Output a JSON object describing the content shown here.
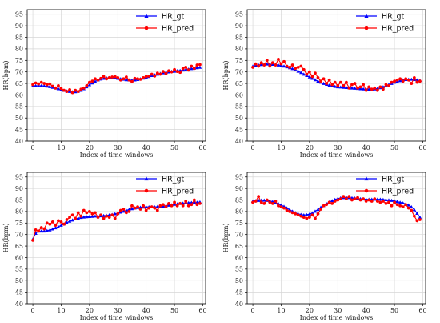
{
  "chart_data": [
    {
      "type": "line",
      "xlabel": "Index of time windows",
      "ylabel": "HR(bpm)",
      "xlim": [
        -2,
        61
      ],
      "ylim": [
        40,
        97
      ],
      "xticks": [
        0,
        10,
        20,
        30,
        40,
        50,
        60
      ],
      "yticks": [
        40,
        45,
        50,
        55,
        60,
        65,
        70,
        75,
        80,
        85,
        90,
        95
      ],
      "grid": true,
      "legend_position": "top-right",
      "series": [
        {
          "name": "HR_gt",
          "color": "#0000ff",
          "marker": "triangle",
          "y": [
            64.0,
            64.0,
            64.0,
            64.0,
            63.9,
            63.8,
            63.6,
            63.3,
            63.0,
            62.7,
            62.3,
            62.0,
            61.7,
            61.5,
            61.4,
            61.4,
            61.6,
            62.0,
            62.7,
            63.5,
            64.4,
            65.2,
            65.9,
            66.5,
            66.9,
            67.2,
            67.4,
            67.5,
            67.5,
            67.4,
            67.2,
            67.0,
            66.8,
            66.6,
            66.5,
            66.4,
            66.5,
            66.7,
            67.0,
            67.3,
            67.7,
            68.0,
            68.4,
            68.7,
            69.0,
            69.3,
            69.6,
            69.8,
            70.0,
            70.2,
            70.3,
            70.5,
            70.6,
            70.8,
            71.0,
            71.2,
            71.4,
            71.6,
            71.8,
            72.0
          ]
        },
        {
          "name": "HR_pred",
          "color": "#ff0000",
          "marker": "circle",
          "y": [
            64.5,
            65.2,
            64.8,
            65.5,
            65.0,
            64.5,
            64.8,
            63.8,
            63.0,
            64.0,
            62.8,
            62.0,
            61.5,
            62.3,
            61.0,
            62.0,
            61.5,
            62.5,
            63.0,
            64.0,
            65.5,
            66.0,
            67.0,
            66.5,
            67.2,
            68.0,
            67.0,
            67.5,
            67.8,
            68.0,
            67.5,
            66.5,
            67.0,
            67.8,
            66.5,
            65.8,
            67.2,
            67.0,
            66.8,
            67.5,
            68.0,
            68.2,
            69.0,
            68.2,
            69.5,
            69.0,
            70.2,
            69.2,
            70.5,
            70.0,
            71.0,
            70.2,
            69.8,
            71.5,
            72.0,
            70.8,
            72.5,
            71.5,
            73.0,
            73.2
          ]
        }
      ]
    },
    {
      "type": "line",
      "xlabel": "Index of time windows",
      "ylabel": "HR(bpm)",
      "xlim": [
        -2,
        61
      ],
      "ylim": [
        40,
        97
      ],
      "xticks": [
        0,
        10,
        20,
        30,
        40,
        50,
        60
      ],
      "yticks": [
        40,
        45,
        50,
        55,
        60,
        65,
        70,
        75,
        80,
        85,
        90,
        95
      ],
      "grid": true,
      "legend_position": "top-right",
      "series": [
        {
          "name": "HR_gt",
          "color": "#0000ff",
          "marker": "triangle",
          "y": [
            72.5,
            72.8,
            73.0,
            73.2,
            73.3,
            73.4,
            73.4,
            73.3,
            73.2,
            73.0,
            72.8,
            72.5,
            72.2,
            71.8,
            71.4,
            70.9,
            70.3,
            69.7,
            69.0,
            68.4,
            67.8,
            67.2,
            66.6,
            66.0,
            65.5,
            65.0,
            64.6,
            64.2,
            63.9,
            63.7,
            63.5,
            63.4,
            63.3,
            63.2,
            63.1,
            63.0,
            62.9,
            62.8,
            62.7,
            62.6,
            62.5,
            62.5,
            62.5,
            62.6,
            62.8,
            63.1,
            63.5,
            64.0,
            64.5,
            65.0,
            65.5,
            65.9,
            66.2,
            66.5,
            66.7,
            66.8,
            66.8,
            66.7,
            66.5,
            66.3
          ]
        },
        {
          "name": "HR_pred",
          "color": "#ff0000",
          "marker": "circle",
          "y": [
            72.0,
            73.5,
            72.5,
            74.0,
            73.0,
            75.0,
            72.5,
            74.0,
            73.0,
            75.5,
            73.5,
            74.5,
            72.5,
            72.0,
            73.0,
            71.5,
            72.0,
            72.5,
            71.0,
            69.0,
            70.0,
            68.0,
            69.5,
            67.5,
            66.0,
            67.0,
            65.0,
            66.5,
            64.5,
            65.5,
            64.0,
            65.5,
            64.0,
            65.5,
            63.0,
            64.5,
            65.0,
            63.0,
            63.5,
            64.5,
            62.0,
            63.5,
            62.5,
            63.0,
            62.0,
            63.5,
            62.5,
            64.5,
            64.0,
            65.5,
            66.0,
            66.5,
            67.0,
            66.0,
            67.0,
            66.5,
            65.0,
            67.5,
            65.5,
            66.0
          ]
        }
      ]
    },
    {
      "type": "line",
      "xlabel": "Index of time windows",
      "ylabel": "HR(bpm)",
      "xlim": [
        -2,
        61
      ],
      "ylim": [
        40,
        97
      ],
      "xticks": [
        0,
        10,
        20,
        30,
        40,
        50,
        60
      ],
      "yticks": [
        40,
        45,
        50,
        55,
        60,
        65,
        70,
        75,
        80,
        85,
        90,
        95
      ],
      "grid": true,
      "legend_position": "top-right",
      "series": [
        {
          "name": "HR_gt",
          "color": "#0000ff",
          "marker": "triangle",
          "y": [
            68.0,
            70.5,
            71.5,
            71.5,
            71.5,
            71.7,
            72.0,
            72.4,
            72.9,
            73.4,
            74.0,
            74.6,
            75.2,
            75.8,
            76.3,
            76.8,
            77.1,
            77.4,
            77.6,
            77.7,
            77.8,
            77.9,
            78.0,
            78.0,
            78.1,
            78.2,
            78.3,
            78.5,
            78.7,
            79.0,
            79.3,
            79.7,
            80.1,
            80.5,
            80.9,
            81.2,
            81.5,
            81.7,
            81.8,
            81.9,
            82.0,
            82.0,
            82.0,
            82.0,
            82.1,
            82.2,
            82.3,
            82.5,
            82.7,
            82.9,
            83.1,
            83.3,
            83.5,
            83.6,
            83.7,
            83.8,
            83.9,
            84.0,
            84.0,
            84.1
          ]
        },
        {
          "name": "HR_pred",
          "color": "#ff0000",
          "marker": "circle",
          "y": [
            67.5,
            72.0,
            71.5,
            73.0,
            72.5,
            75.0,
            74.5,
            75.5,
            74.0,
            76.0,
            75.5,
            74.5,
            76.5,
            77.5,
            78.5,
            77.0,
            79.5,
            78.0,
            80.5,
            79.5,
            80.0,
            79.0,
            79.5,
            77.5,
            78.5,
            77.0,
            78.0,
            77.5,
            78.5,
            77.0,
            79.0,
            80.5,
            81.0,
            79.5,
            80.0,
            82.5,
            81.5,
            82.0,
            81.0,
            82.5,
            80.5,
            81.5,
            82.0,
            81.5,
            80.5,
            82.5,
            83.0,
            82.0,
            83.5,
            82.5,
            84.0,
            82.5,
            83.5,
            82.5,
            84.5,
            82.5,
            83.0,
            85.0,
            83.0,
            83.5
          ]
        }
      ]
    },
    {
      "type": "line",
      "xlabel": "Index of time windows",
      "ylabel": "HR(bpm)",
      "xlim": [
        -2,
        61
      ],
      "ylim": [
        40,
        97
      ],
      "xticks": [
        0,
        10,
        20,
        30,
        40,
        50,
        60
      ],
      "yticks": [
        40,
        45,
        50,
        55,
        60,
        65,
        70,
        75,
        80,
        85,
        90,
        95
      ],
      "grid": true,
      "legend_position": "top-right",
      "series": [
        {
          "name": "HR_gt",
          "color": "#0000ff",
          "marker": "triangle",
          "y": [
            84.5,
            84.7,
            84.8,
            84.9,
            84.9,
            84.8,
            84.6,
            84.3,
            83.9,
            83.4,
            82.8,
            82.2,
            81.5,
            80.8,
            80.1,
            79.5,
            79.0,
            78.7,
            78.5,
            78.6,
            78.9,
            79.4,
            80.1,
            80.9,
            81.8,
            82.6,
            83.4,
            84.1,
            84.7,
            85.2,
            85.6,
            85.9,
            86.0,
            86.1,
            86.0,
            85.9,
            85.8,
            85.6,
            85.5,
            85.4,
            85.3,
            85.3,
            85.3,
            85.3,
            85.3,
            85.3,
            85.2,
            85.1,
            85.0,
            84.8,
            84.6,
            84.3,
            84.0,
            83.7,
            83.3,
            82.8,
            82.0,
            80.8,
            79.2,
            77.5
          ]
        },
        {
          "name": "HR_pred",
          "color": "#ff0000",
          "marker": "circle",
          "y": [
            84.0,
            84.5,
            86.5,
            84.0,
            83.5,
            85.0,
            84.0,
            83.5,
            84.5,
            82.5,
            82.0,
            81.5,
            80.5,
            80.0,
            79.5,
            79.0,
            78.5,
            78.0,
            77.5,
            77.0,
            77.5,
            78.5,
            77.0,
            79.0,
            81.0,
            82.5,
            83.0,
            84.0,
            83.5,
            84.5,
            85.0,
            85.5,
            86.5,
            85.5,
            86.5,
            85.0,
            85.5,
            86.0,
            85.0,
            85.5,
            84.5,
            85.0,
            84.5,
            85.5,
            84.5,
            84.0,
            84.5,
            83.5,
            84.0,
            82.5,
            84.0,
            83.0,
            82.5,
            82.0,
            83.0,
            81.5,
            80.5,
            78.0,
            76.0,
            76.5
          ]
        }
      ]
    }
  ]
}
